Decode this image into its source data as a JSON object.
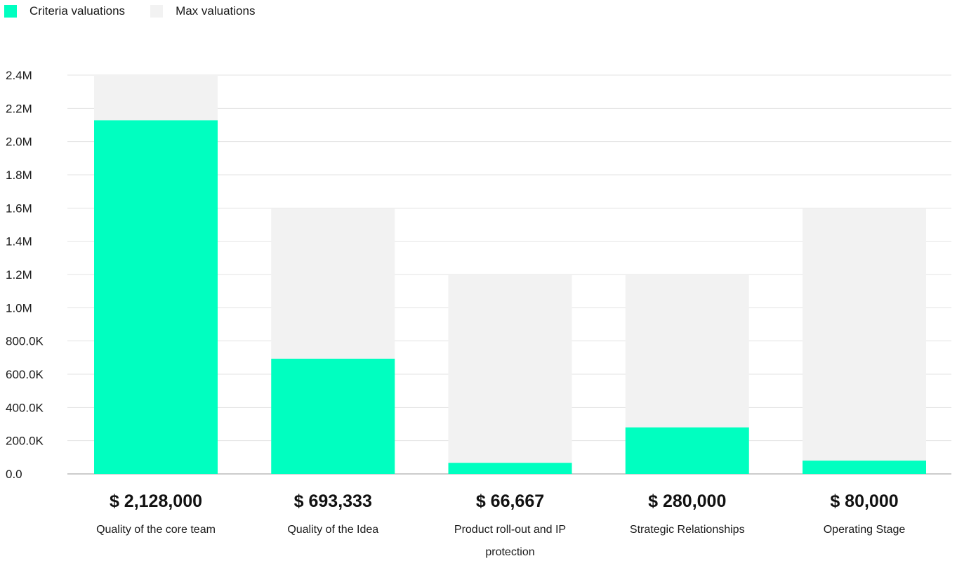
{
  "legend": {
    "criteria_label": "Criteria valuations",
    "max_label": "Max valuations"
  },
  "colors": {
    "criteria": "#00ffc0",
    "max": "#f2f2f2",
    "grid": "#e3e3e3",
    "axis": "#9a9a9a"
  },
  "chart_data": {
    "type": "bar",
    "stacked": false,
    "overlay": true,
    "categories": [
      [
        "Quality of the core team"
      ],
      [
        "Quality of the Idea"
      ],
      [
        "Product roll-out and IP",
        "protection"
      ],
      [
        "Strategic Relationships"
      ],
      [
        "Operating Stage"
      ]
    ],
    "series": [
      {
        "name": "Criteria valuations",
        "values": [
          2128000,
          693333,
          66667,
          280000,
          80000
        ]
      },
      {
        "name": "Max valuations",
        "values": [
          2400000,
          1600000,
          1200000,
          1200000,
          1600000
        ]
      }
    ],
    "value_labels": [
      "$ 2,128,000",
      "$ 693,333",
      "$ 66,667",
      "$ 280,000",
      "$ 80,000"
    ],
    "yticks": [
      0,
      200000,
      400000,
      600000,
      800000,
      1000000,
      1200000,
      1400000,
      1600000,
      1800000,
      2000000,
      2200000,
      2400000
    ],
    "ytick_labels": [
      "0.0",
      "200.0K",
      "400.0K",
      "600.0K",
      "800.0K",
      "1.0M",
      "1.2M",
      "1.4M",
      "1.6M",
      "1.8M",
      "2.0M",
      "2.2M",
      "2.4M"
    ],
    "ylim": [
      0,
      2400000
    ],
    "grid": true,
    "legend_position": "top-left"
  }
}
